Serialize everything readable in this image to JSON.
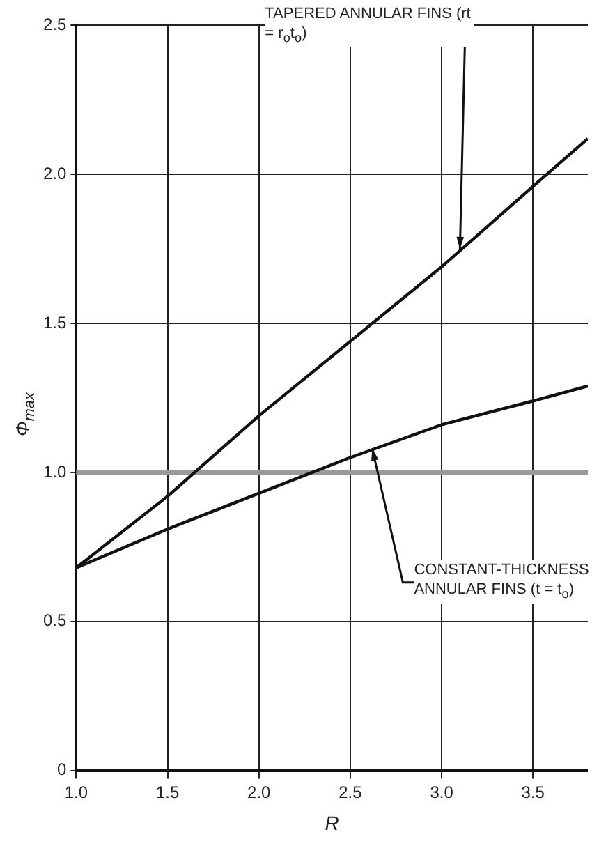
{
  "chart_data": {
    "type": "line",
    "xlabel": "R",
    "ylabel": "Φ$_{max}$",
    "x": [
      1.0,
      1.5,
      2.0,
      2.5,
      3.0,
      3.5,
      3.8
    ],
    "series": [
      {
        "color": "#111111",
        "values": [
          0.68,
          0.92,
          1.19,
          1.44,
          1.69,
          1.96,
          2.12
        ]
      },
      {
        "color": "#111111",
        "values": [
          0.68,
          0.81,
          0.93,
          1.05,
          1.16,
          1.24,
          1.29
        ]
      }
    ],
    "xlim": [
      1.0,
      3.8
    ],
    "xticks": [
      {
        "value": 1,
        "label": "1.0"
      },
      1.5,
      {
        "value": 2,
        "label": "2.0"
      },
      2.5,
      {
        "value": 3,
        "label": "3.0"
      },
      3.5
    ],
    "ylim": [
      0,
      2.5
    ],
    "yticks": [
      0,
      0.5,
      {
        "value": 1,
        "label": "1.0"
      },
      1.5,
      {
        "value": 2,
        "label": "2.0"
      },
      2.5
    ],
    "ref_lines": [
      {
        "axis": "y",
        "value": 1.0,
        "color": "#9a9a9a"
      }
    ],
    "annotations": [
      {
        "text": "TAPERED ANNULAR FINS (rt = r$_{o}$t$_{o}$)",
        "x": 3.1,
        "y": 1.75
      },
      {
        "text": "CONSTANT-THICKNESS ANNULAR FINS (t = t$_{o}$)",
        "x": 2.62,
        "y": 1.08
      }
    ],
    "grid": true,
    "legend": false,
    "marker": "none",
    "line_style": "solid"
  }
}
